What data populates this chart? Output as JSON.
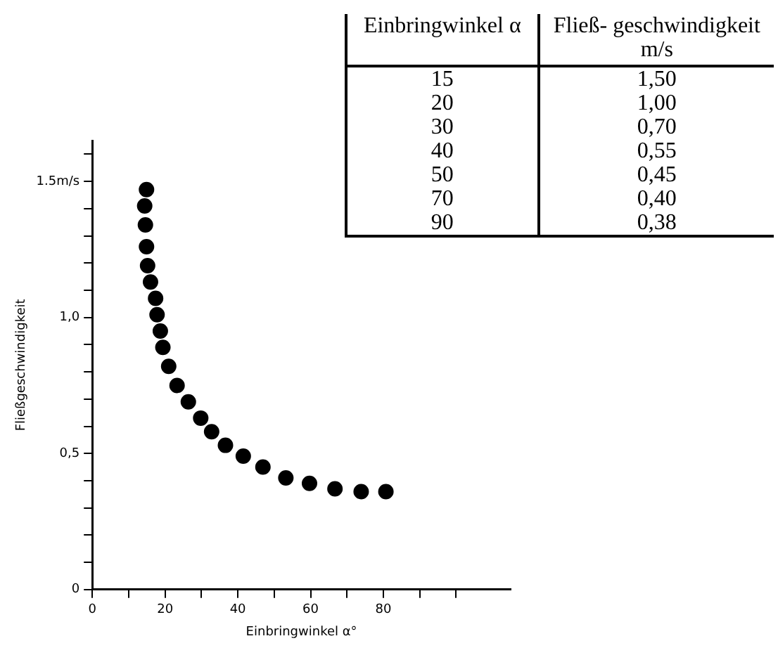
{
  "chart_data": [
    {
      "type": "scatter",
      "xlabel": "Einbringwinkel α°",
      "ylabel": "Fließgeschwindigkeit",
      "color": "#000000",
      "marker": "circle",
      "grid": false,
      "x": [
        14.9,
        14.4,
        14.6,
        14.9,
        15.2,
        16.0,
        17.4,
        17.8,
        18.7,
        19.4,
        21.0,
        23.3,
        26.4,
        29.8,
        32.8,
        36.6,
        41.5,
        46.9,
        53.2,
        59.7,
        66.7,
        73.9,
        80.7
      ],
      "values": [
        1.47,
        1.41,
        1.34,
        1.26,
        1.19,
        1.13,
        1.07,
        1.01,
        0.95,
        0.89,
        0.82,
        0.75,
        0.69,
        0.63,
        0.58,
        0.53,
        0.49,
        0.45,
        0.41,
        0.39,
        0.37,
        0.36,
        0.36
      ],
      "xlim": [
        0,
        115
      ],
      "ylim": [
        0,
        1.65
      ],
      "xticks": [
        0,
        {
          "value": 10,
          "label": null
        },
        20,
        {
          "value": 30,
          "label": null
        },
        40,
        {
          "value": 50,
          "label": null
        },
        60,
        {
          "value": 70,
          "label": null
        },
        80,
        {
          "value": 90,
          "label": null
        },
        {
          "value": 100,
          "label": null
        }
      ],
      "yticks": [
        0,
        {
          "value": 0.1,
          "label": null
        },
        {
          "value": 0.2,
          "label": null
        },
        {
          "value": 0.3,
          "label": null
        },
        {
          "value": 0.4,
          "label": null
        },
        {
          "value": 0.5,
          "label": "0,5"
        },
        {
          "value": 0.6,
          "label": null
        },
        {
          "value": 0.7,
          "label": null
        },
        {
          "value": 0.8,
          "label": null
        },
        {
          "value": 0.9,
          "label": null
        },
        {
          "value": 1.0,
          "label": "1,0"
        },
        {
          "value": 1.1,
          "label": null
        },
        {
          "value": 1.2,
          "label": null
        },
        {
          "value": 1.3,
          "label": null
        },
        {
          "value": 1.4,
          "label": null
        },
        {
          "value": 1.5,
          "label": "1.5m/s"
        },
        {
          "value": 1.6,
          "label": null
        }
      ]
    },
    {
      "type": "other",
      "annotations": [
        "Einbringwinkel α",
        "Fließ- geschwindigkeit m/s",
        "15",
        "1,50",
        "20",
        "1,00",
        "30",
        "0,70",
        "40",
        "0,55",
        "50",
        "0,45",
        "70",
        "0,40",
        "90",
        "0,38"
      ]
    }
  ]
}
